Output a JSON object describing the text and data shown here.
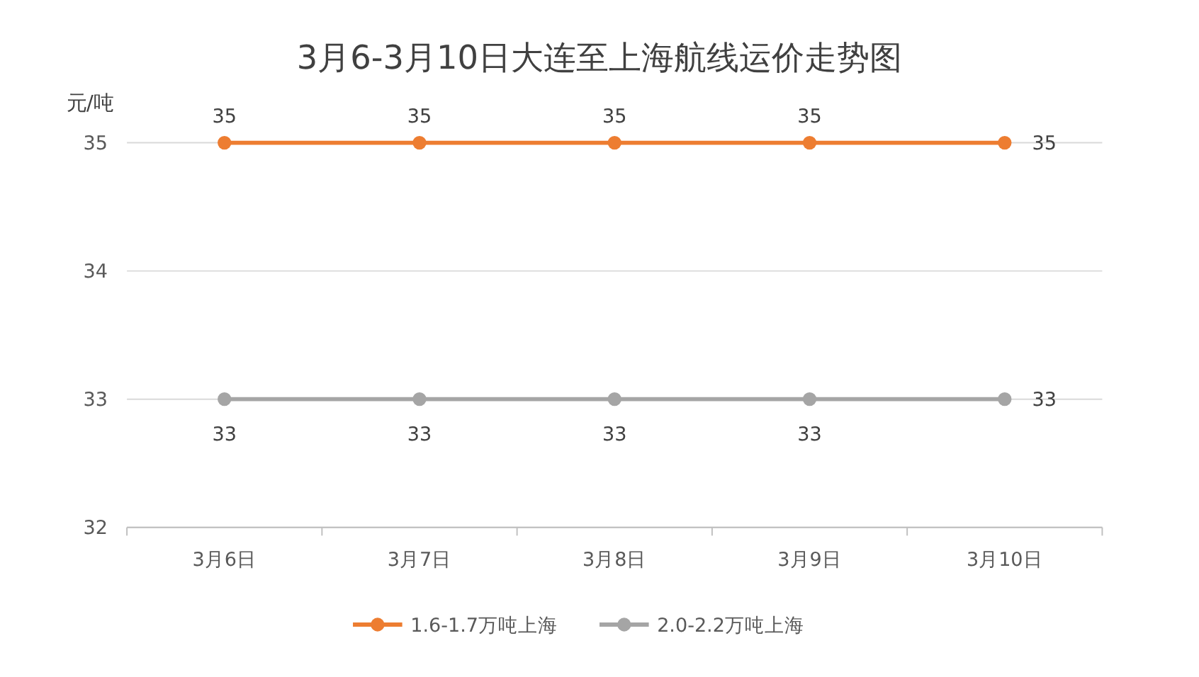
{
  "chart_data": {
    "type": "line",
    "title": "3月6-3月10日大连至上海航线运价走势图",
    "ylabel": "元/吨",
    "categories": [
      "3月6日",
      "3月7日",
      "3月8日",
      "3月9日",
      "3月10日"
    ],
    "series": [
      {
        "name": "1.6-1.7万吨上海",
        "color": "#ed7d31",
        "values": [
          35,
          35,
          35,
          35,
          35
        ]
      },
      {
        "name": "2.0-2.2万吨上海",
        "color": "#a5a5a5",
        "values": [
          33,
          33,
          33,
          33,
          33
        ]
      }
    ],
    "ylim": [
      32,
      35
    ],
    "yticks": [
      32,
      33,
      34,
      35
    ],
    "grid": "y",
    "legend": "bottom",
    "marker": "circle",
    "data_labels": true
  }
}
